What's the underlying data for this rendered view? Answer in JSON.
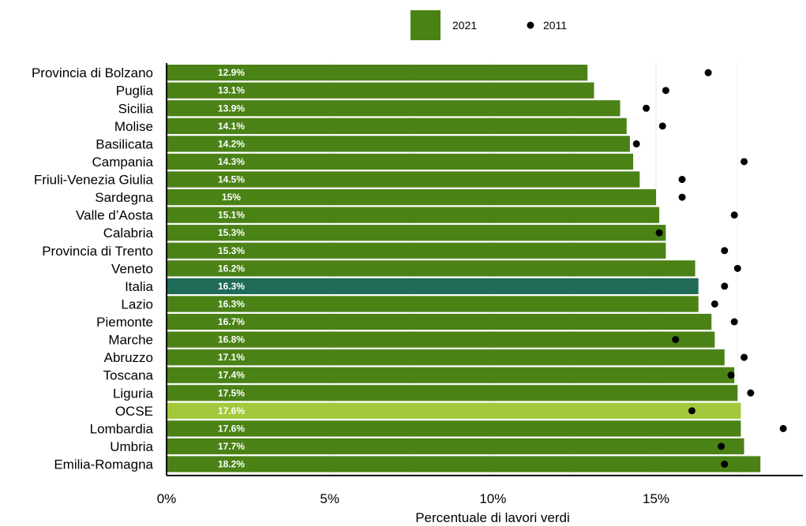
{
  "chart_data": {
    "type": "bar",
    "orientation": "horizontal",
    "categories": [
      "Provincia di Bolzano",
      "Puglia",
      "Sicilia",
      "Molise",
      "Basilicata",
      "Campania",
      "Friuli-Venezia Giulia",
      "Sardegna",
      "Valle d’Aosta",
      "Calabria",
      "Provincia di Trento",
      "Veneto",
      "Italia",
      "Lazio",
      "Piemonte",
      "Marche",
      "Abruzzo",
      "Toscana",
      "Liguria",
      "OCSE",
      "Lombardia",
      "Umbria",
      "Emilia-Romagna"
    ],
    "series": [
      {
        "name": "2021",
        "marker": "bar",
        "values": [
          12.9,
          13.1,
          13.9,
          14.1,
          14.2,
          14.3,
          14.5,
          15.0,
          15.1,
          15.3,
          15.3,
          16.2,
          16.3,
          16.3,
          16.7,
          16.8,
          17.1,
          17.4,
          17.5,
          17.6,
          17.6,
          17.7,
          18.2
        ],
        "value_labels": [
          "12.9%",
          "13.1%",
          "13.9%",
          "14.1%",
          "14.2%",
          "14.3%",
          "14.5%",
          "15%",
          "15.1%",
          "15.3%",
          "15.3%",
          "16.2%",
          "16.3%",
          "16.3%",
          "16.7%",
          "16.8%",
          "17.1%",
          "17.4%",
          "17.5%",
          "17.6%",
          "17.6%",
          "17.7%",
          "18.2%"
        ]
      },
      {
        "name": "2011",
        "marker": "dot",
        "values": [
          16.6,
          15.3,
          14.7,
          15.2,
          14.4,
          17.7,
          15.8,
          15.8,
          17.4,
          15.1,
          17.1,
          17.5,
          17.1,
          16.8,
          17.4,
          15.6,
          17.7,
          17.3,
          17.9,
          16.1,
          18.9,
          17.0,
          17.1
        ]
      }
    ],
    "highlight": {
      "Italia": "#1f6b58",
      "OCSE": "#a3c83c"
    },
    "xlabel": "Percentuale di lavori verdi",
    "xlim": [
      0,
      19.5
    ],
    "xticks": [
      0,
      5,
      10,
      15
    ],
    "xtick_labels": [
      "0%",
      "5%",
      "10%",
      "15%"
    ],
    "grid": "vertical",
    "legend_position": "top-right",
    "colors": {
      "bar": "#4a8216",
      "dot": "#000000",
      "grid": "#e6e6e6",
      "axis": "#000000"
    }
  }
}
